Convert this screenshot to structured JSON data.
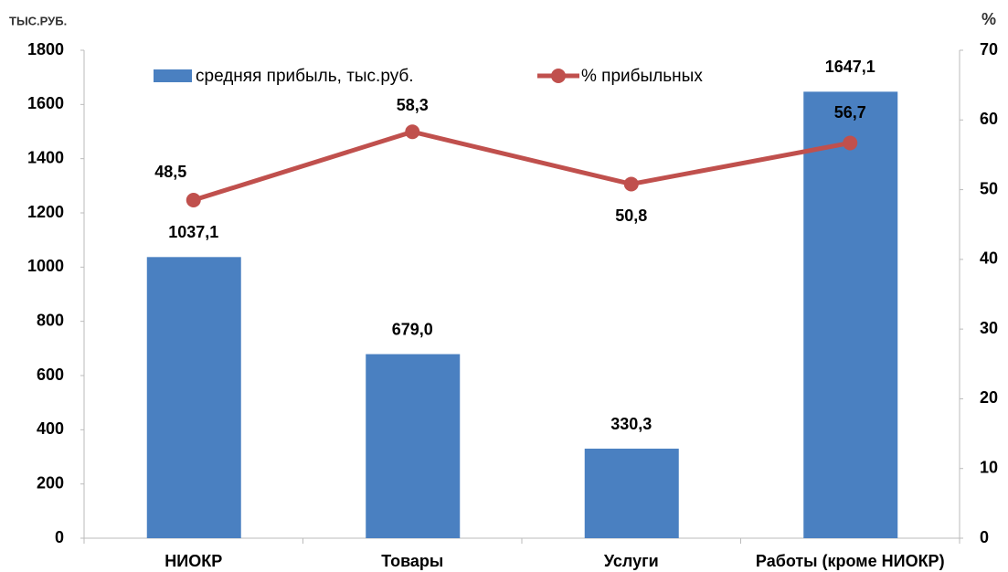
{
  "chart_data": {
    "type": "bar",
    "y_label": "ТЫС.РУБ.",
    "y2_label": "%",
    "categories": [
      "НИОКР",
      "Товары",
      "Услуги",
      "Работы (кроме НИОКР)"
    ],
    "series": [
      {
        "name": "средняя прибыль, тыс.руб.",
        "type": "bar",
        "color": "#4a80c1",
        "values": [
          1037.1,
          679.0,
          330.3,
          1647.1
        ],
        "value_labels": [
          "1037,1",
          "679,0",
          "330,3",
          "1647,1"
        ]
      },
      {
        "name": "% прибыльных",
        "type": "line",
        "axis": "y2",
        "color": "#c0504d",
        "values": [
          48.5,
          58.3,
          50.8,
          56.7
        ],
        "value_labels": [
          "48,5",
          "58,3",
          "50,8",
          "56,7"
        ]
      }
    ],
    "ylim": [
      0,
      1800
    ],
    "yticks": [
      0,
      200,
      400,
      600,
      800,
      1000,
      1200,
      1400,
      1600,
      1800
    ],
    "y2lim": [
      0,
      70
    ],
    "y2ticks": [
      0,
      10,
      20,
      30,
      40,
      50,
      60,
      70
    ],
    "legend": "top"
  }
}
